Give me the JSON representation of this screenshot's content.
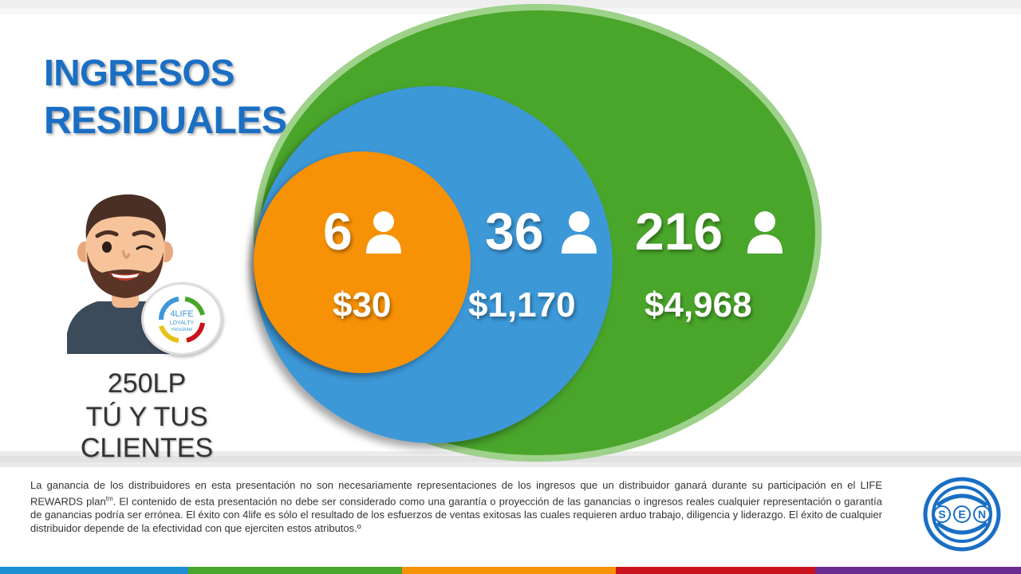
{
  "title": {
    "line1": "INGRESOS",
    "line2": "RESIDUALES"
  },
  "levels": [
    {
      "count": "6",
      "amount": "$30",
      "color": "#f79106"
    },
    {
      "count": "36",
      "amount": "$1,170",
      "color": "#3d98d8"
    },
    {
      "count": "216",
      "amount": "$4,968",
      "color": "#4aa62b"
    }
  ],
  "person": {
    "points": "250LP",
    "label": "TÚ Y TUS CLIENTES"
  },
  "badge": {
    "line1": "4LIFE",
    "line2": "LOYALTY",
    "line3": "PROGRAM"
  },
  "disclaimer": {
    "text_before": "La ganancia de los distribuidores en esta presentación no son necesariamente representaciones de los ingresos que un distribuidor ganará durante su participación en el LIFE REWARDS plan",
    "superscript": "tm",
    "text_after": ". El contenido de esta presentación no debe ser considerado como una garantía o proyección de las ganancias o ingresos reales cualquier representación o garantía de ganancias podría ser errónea. El éxito con 4life es sólo el resultado de los esfuerzos de ventas exitosas las cuales requieren arduo trabajo, diligencia y liderazgo. El éxito de cualquier distribuidor depende de la efectividad con que ejerciten estos atributos.º"
  },
  "logo": {
    "letter1": "S",
    "letter2": "E",
    "letter3": "N"
  },
  "stripe_colors": [
    "#1b8fd2",
    "#4aa62b",
    "#f79106",
    "#c9141d",
    "#6a2c91"
  ]
}
